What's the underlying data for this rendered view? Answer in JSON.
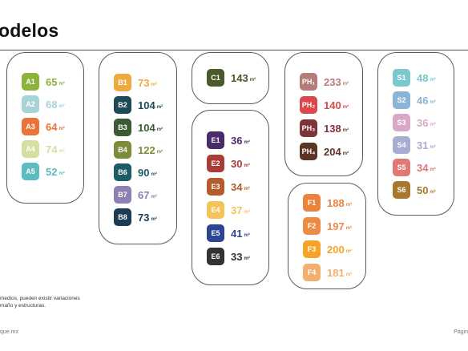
{
  "title": "odelos",
  "footnote": {
    "line1": "medios, pueden existir variaciones",
    "line2": "maño y estructuras."
  },
  "footer": {
    "left": "que.mx",
    "right": "Págin"
  },
  "unit": "m²",
  "groups": [
    {
      "id": "a",
      "items": [
        {
          "code": "A1",
          "value": "65",
          "color": "#8cb43c"
        },
        {
          "code": "A2",
          "value": "68",
          "color": "#a8d4d8"
        },
        {
          "code": "A3",
          "value": "64",
          "color": "#e8743b"
        },
        {
          "code": "A4",
          "value": "74",
          "color": "#d6dea0"
        },
        {
          "code": "A5",
          "value": "52",
          "color": "#5cbcc0"
        }
      ]
    },
    {
      "id": "b",
      "items": [
        {
          "code": "B1",
          "value": "73",
          "color": "#eeaa40"
        },
        {
          "code": "B2",
          "value": "104",
          "color": "#1e4a58"
        },
        {
          "code": "B3",
          "value": "104",
          "color": "#3c5a34"
        },
        {
          "code": "B4",
          "value": "122",
          "color": "#7c8c3c"
        },
        {
          "code": "B6",
          "value": "90",
          "color": "#1c5c66"
        },
        {
          "code": "B7",
          "value": "67",
          "color": "#8c80b4"
        },
        {
          "code": "B8",
          "value": "73",
          "color": "#1c3c54"
        }
      ]
    },
    {
      "id": "c",
      "items": [
        {
          "code": "C1",
          "value": "143",
          "color": "#4a5a2c"
        }
      ]
    },
    {
      "id": "e",
      "items": [
        {
          "code": "E1",
          "value": "36",
          "color": "#4a2c6a"
        },
        {
          "code": "E2",
          "value": "30",
          "color": "#a83c38"
        },
        {
          "code": "E3",
          "value": "34",
          "color": "#b45c2c"
        },
        {
          "code": "E4",
          "value": "37",
          "color": "#f4c45c"
        },
        {
          "code": "E5",
          "value": "41",
          "color": "#2c4494"
        },
        {
          "code": "E6",
          "value": "33",
          "color": "#333333"
        }
      ]
    },
    {
      "id": "ph",
      "items": [
        {
          "code": "PH₁",
          "value": "233",
          "color": "#b47c78"
        },
        {
          "code": "PH₂",
          "value": "140",
          "color": "#d8484c"
        },
        {
          "code": "PH₃",
          "value": "138",
          "color": "#7c3438"
        },
        {
          "code": "PH₄",
          "value": "204",
          "color": "#5c3424"
        }
      ]
    },
    {
      "id": "f",
      "items": [
        {
          "code": "F1",
          "value": "188",
          "color": "#e8843c"
        },
        {
          "code": "F2",
          "value": "197",
          "color": "#ec8c44"
        },
        {
          "code": "F3",
          "value": "200",
          "color": "#f4a428"
        },
        {
          "code": "F4",
          "value": "181",
          "color": "#f2b070"
        }
      ]
    },
    {
      "id": "s",
      "items": [
        {
          "code": "S1",
          "value": "48",
          "color": "#7cc8cc"
        },
        {
          "code": "S2",
          "value": "46",
          "color": "#8cb4d4"
        },
        {
          "code": "S3",
          "value": "36",
          "color": "#d8a8c8"
        },
        {
          "code": "S4",
          "value": "31",
          "color": "#a8acd0"
        },
        {
          "code": "S5",
          "value": "34",
          "color": "#e07874"
        },
        {
          "code": "S6",
          "value": "50",
          "color": "#a8782c"
        }
      ]
    }
  ]
}
